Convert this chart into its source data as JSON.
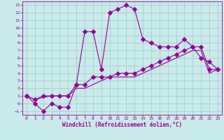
{
  "xlabel": "Windchill (Refroidissement éolien,°C)",
  "x_hours": [
    0,
    1,
    2,
    3,
    4,
    5,
    6,
    7,
    8,
    9,
    10,
    11,
    12,
    13,
    14,
    15,
    16,
    17,
    18,
    19,
    20,
    21,
    22,
    23
  ],
  "temp_line": [
    1,
    0,
    -1,
    0,
    -0.5,
    -0.5,
    2.5,
    9.5,
    9.5,
    4.5,
    12,
    12.5,
    13,
    12.5,
    8.5,
    8,
    7.5,
    7.5,
    7.5,
    8.5,
    7.5,
    6,
    5.5,
    4.5
  ],
  "windchill_line": [
    1,
    0.5,
    1,
    1,
    1,
    1,
    2.5,
    2.5,
    3.5,
    3.5,
    3.5,
    4,
    4,
    4,
    4.5,
    5,
    5.5,
    6,
    6.5,
    7,
    7.5,
    7.5,
    4.5,
    4.5
  ],
  "linear_line": [
    1,
    0.5,
    0.8,
    1,
    1,
    1,
    2,
    2,
    2.5,
    3,
    3.5,
    3.5,
    3.5,
    3.5,
    4,
    4.5,
    5,
    5.5,
    6,
    6.5,
    7,
    7,
    4,
    4.5
  ],
  "line_color": "#990099",
  "bg_color": "#c8eaea",
  "grid_color": "#9dc8c8",
  "ylim": [
    -1.5,
    13.5
  ],
  "xlim": [
    -0.5,
    23.5
  ],
  "yticks": [
    -1,
    0,
    1,
    2,
    3,
    4,
    5,
    6,
    7,
    8,
    9,
    10,
    11,
    12,
    13
  ],
  "xticks": [
    0,
    1,
    2,
    3,
    4,
    5,
    6,
    7,
    8,
    9,
    10,
    11,
    12,
    13,
    14,
    15,
    16,
    17,
    18,
    19,
    20,
    21,
    22,
    23
  ],
  "tick_fontsize": 4.5,
  "label_fontsize": 5.5
}
